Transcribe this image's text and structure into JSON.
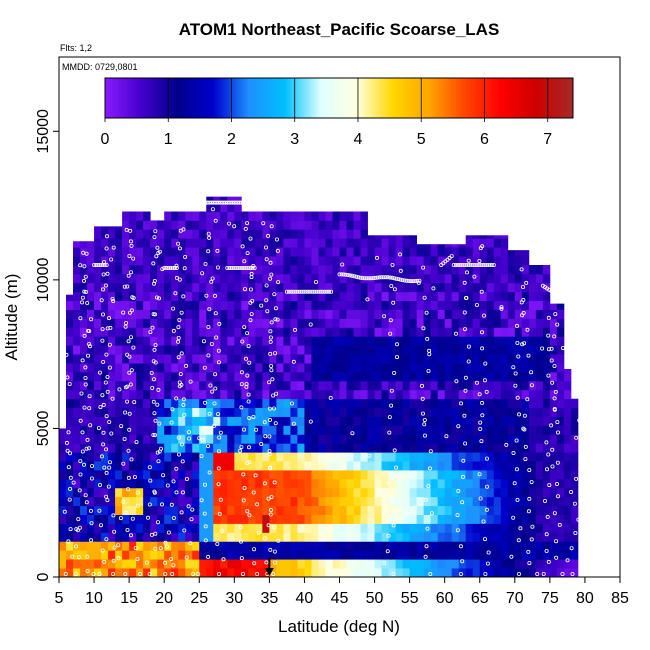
{
  "chart_data": {
    "type": "heatmap",
    "title": "ATOM1 Northeast_Pacific Scoarse_LAS",
    "annotations": {
      "flights": "Flts: 1,2",
      "dates": "MMDD: 0729,0801"
    },
    "xlabel": "Latitude (deg N)",
    "ylabel": "Altitude (m)",
    "xlim": [
      5,
      85
    ],
    "ylim": [
      0,
      17500
    ],
    "x_ticks": [
      "5",
      "10",
      "15",
      "20",
      "25",
      "30",
      "35",
      "40",
      "45",
      "50",
      "55",
      "60",
      "65",
      "70",
      "75",
      "80",
      "85"
    ],
    "y_ticks": [
      "0",
      "5000",
      "10000",
      "15000"
    ],
    "colorbar": {
      "ticks": [
        "0",
        "1",
        "2",
        "3",
        "4",
        "5",
        "6",
        "7"
      ],
      "range": [
        0,
        7.4
      ],
      "colors": [
        "#8b1aff",
        "#4400cc",
        "#00008b",
        "#0000cd",
        "#1e90ff",
        "#00bfff",
        "#e0ffff",
        "#ffffe0",
        "#ffd700",
        "#ffa500",
        "#ff4500",
        "#ff0000",
        "#cd0000",
        "#a52a2a"
      ],
      "placement": "top-inside"
    },
    "marker": {
      "latitude": 35,
      "label_shape": "down-arrow"
    },
    "profiles": [
      {
        "lat": [
          5,
          35
        ],
        "alt": [
          0,
          600
        ],
        "value": 5.5
      },
      {
        "lat": [
          35,
          80
        ],
        "alt": [
          0,
          600
        ],
        "value": 4.2
      },
      {
        "lat": [
          5,
          25
        ],
        "alt": [
          600,
          1200
        ],
        "value": 4.5
      },
      {
        "lat": [
          25,
          80
        ],
        "alt": [
          600,
          1200
        ],
        "value": 1.4
      },
      {
        "lat": [
          25,
          75
        ],
        "alt": [
          1200,
          4000
        ],
        "value": 4.6
      },
      {
        "lat": [
          5,
          25
        ],
        "alt": [
          1200,
          4000
        ],
        "value": 1.2
      },
      {
        "lat": [
          5,
          80
        ],
        "alt": [
          4000,
          9500
        ],
        "value": 0.6
      },
      {
        "lat": [
          10,
          78
        ],
        "alt": [
          9500,
          12500
        ],
        "value": 0.3
      }
    ]
  }
}
